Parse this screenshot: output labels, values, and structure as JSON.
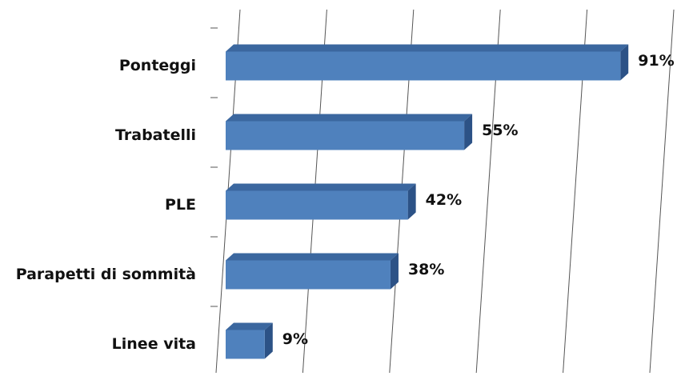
{
  "chart_data": {
    "type": "bar",
    "orientation": "horizontal",
    "three_d": true,
    "categories": [
      "Ponteggi",
      "Trabatelli",
      "PLE",
      "Parapetti di sommità",
      "Linee vita"
    ],
    "values": [
      91,
      55,
      42,
      38,
      9
    ],
    "value_labels": [
      "91%",
      "55%",
      "42%",
      "38%",
      "9%"
    ],
    "color": "#4f81bd",
    "xlim": [
      0,
      100
    ],
    "xticks": [
      0,
      20,
      40,
      60,
      80,
      100
    ],
    "grid": true
  }
}
